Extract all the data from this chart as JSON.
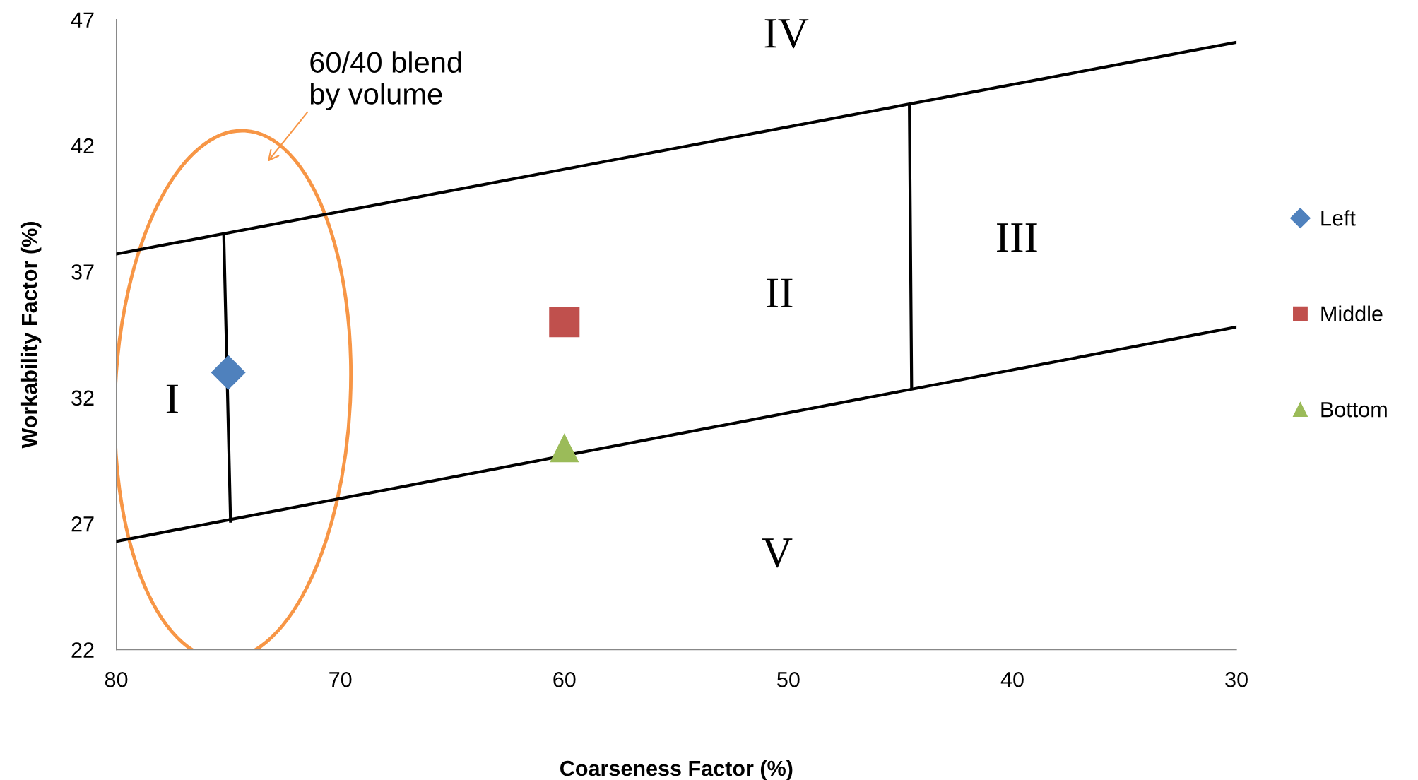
{
  "chart_data": {
    "type": "scatter",
    "xlabel": "Coarseness Factor (%)",
    "ylabel": "Workability Factor (%)",
    "xlim": [
      80,
      30
    ],
    "xticks": [
      80,
      70,
      60,
      50,
      40,
      30
    ],
    "ylim": [
      22,
      47
    ],
    "yticks": [
      22,
      27,
      32,
      37,
      42,
      47
    ],
    "grid": false,
    "legend": "right",
    "series": [
      {
        "name": "Left",
        "color": "#4f81bd",
        "marker": "diamond",
        "x": [
          75
        ],
        "values": [
          33
        ]
      },
      {
        "name": "Middle",
        "color": "#c0504d",
        "marker": "square",
        "x": [
          60
        ],
        "values": [
          35
        ]
      },
      {
        "name": "Bottom",
        "color": "#9bbb59",
        "marker": "triangle",
        "x": [
          60
        ],
        "values": [
          30
        ]
      },
      {
        "type": "line",
        "color": "#000000",
        "marker": "none",
        "x": [
          80,
          30
        ],
        "values": [
          37.7,
          46.1
        ]
      },
      {
        "type": "line",
        "color": "#000000",
        "marker": "none",
        "x": [
          80,
          30
        ],
        "values": [
          26.3,
          34.8
        ]
      },
      {
        "type": "line",
        "color": "#000000",
        "marker": "none",
        "x": [
          75.2,
          74.9
        ],
        "values": [
          38.4,
          27.1
        ]
      },
      {
        "type": "line",
        "color": "#000000",
        "marker": "none",
        "x": [
          44.6,
          44.5
        ],
        "values": [
          43.6,
          32.4
        ]
      }
    ],
    "annotations": [
      "I",
      "II",
      "III",
      "IV",
      "V",
      "60/40 blend\nby volume"
    ]
  }
}
